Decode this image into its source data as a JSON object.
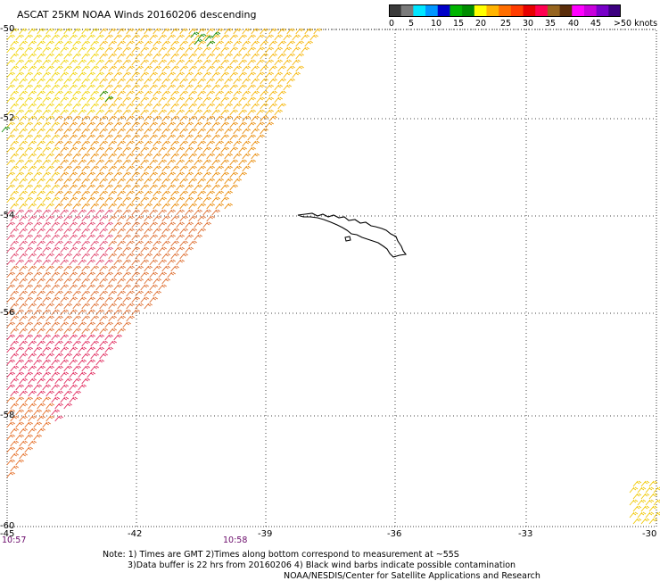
{
  "title": "ASCAT 25KM NOAA Winds 20160206 descending",
  "colorbar": {
    "labels": [
      "0",
      "5",
      "10",
      "15",
      "20",
      "25",
      "30",
      "35",
      "40",
      "45",
      ">50 knots"
    ],
    "colors": [
      "#3a3a3a",
      "#7a7a7a",
      "#00e6ff",
      "#0096ff",
      "#0000c8",
      "#00b400",
      "#008c00",
      "#ffff00",
      "#ffb400",
      "#ff6e00",
      "#ff3c00",
      "#e60000",
      "#ff0050",
      "#96641e",
      "#5a2d0a",
      "#ff00ff",
      "#c800dc",
      "#7800c8",
      "#3c0080"
    ]
  },
  "lat_labels": [
    "-50",
    "-52",
    "-54",
    "-56",
    "-58",
    "-60"
  ],
  "lon_labels": [
    "-45",
    "-42",
    "-39",
    "-36",
    "-33",
    "-30"
  ],
  "times": [
    "10:57",
    "10:58"
  ],
  "note_lines": [
    "Note: 1) Times are GMT 2)Times along bottom correspond to measurement at ~55S",
    "3)Data buffer is 22 hrs from 20160206 4) Black wind barbs indicate possible contamination",
    "NOAA/NESDIS/Center for Satellite Applications and Research"
  ]
}
